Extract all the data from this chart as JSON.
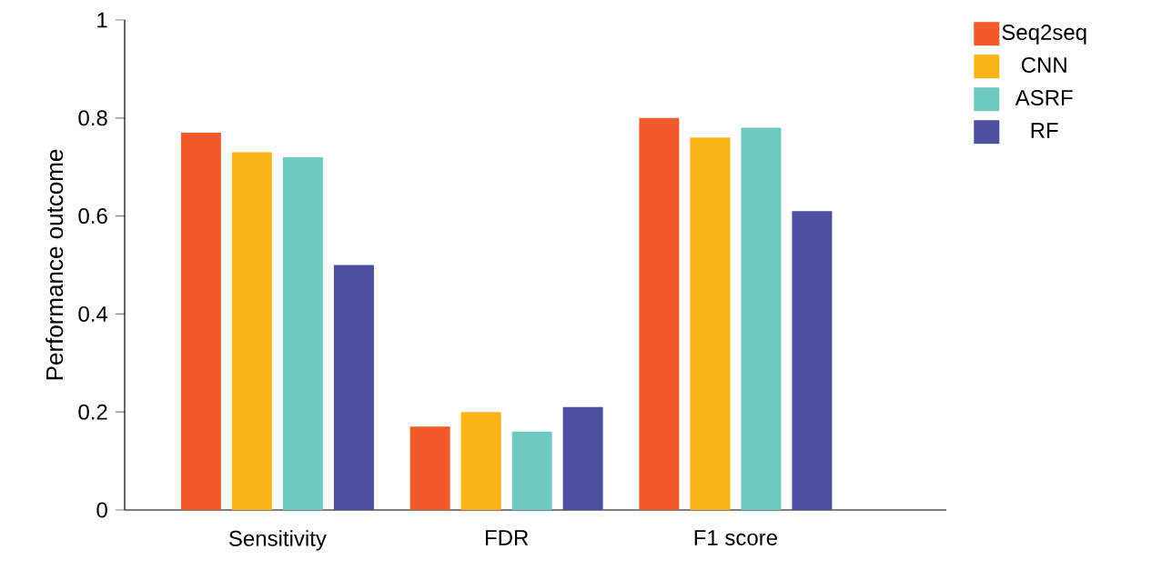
{
  "chart_data": {
    "type": "bar",
    "ylabel": "Performance outcome",
    "categories": [
      "Sensitivity",
      "FDR",
      "F1 score"
    ],
    "series": [
      {
        "name": "Seq2seq",
        "color": "#f15a2b",
        "values": [
          0.77,
          0.17,
          0.8
        ]
      },
      {
        "name": "CNN",
        "color": "#fbb519",
        "values": [
          0.73,
          0.2,
          0.76
        ]
      },
      {
        "name": "ASRF",
        "color": "#6ecabf",
        "values": [
          0.72,
          0.16,
          0.78
        ]
      },
      {
        "name": "RF",
        "color": "#4f4fa0",
        "values": [
          0.5,
          0.21,
          0.61
        ]
      }
    ],
    "ylim": [
      0,
      1
    ],
    "yticks": [
      0,
      0.2,
      0.4,
      0.6,
      0.8,
      1
    ],
    "grid": false,
    "legend": "top right"
  }
}
